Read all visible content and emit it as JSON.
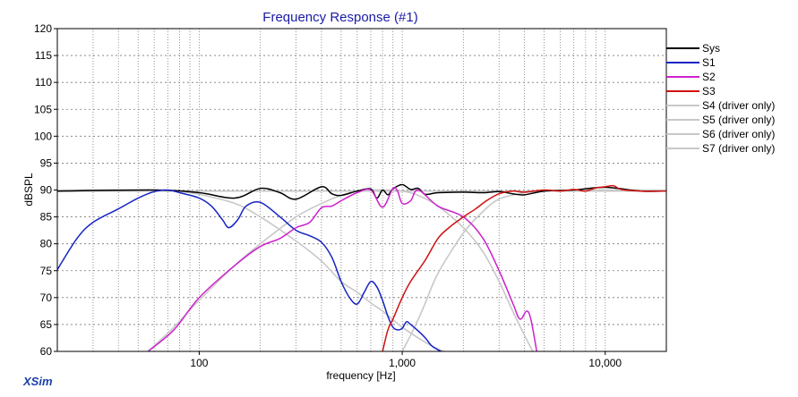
{
  "chart_data": {
    "type": "line",
    "title": "Frequency Response (#1)",
    "xlabel": "frequency [Hz]",
    "ylabel": "dBSPL",
    "x_scale": "log",
    "xlim": [
      20,
      20000
    ],
    "ylim": [
      60,
      120
    ],
    "x_tick_labels": [
      {
        "value": 100,
        "label": "100"
      },
      {
        "value": 1000,
        "label": "1,000"
      },
      {
        "value": 10000,
        "label": "10,000"
      }
    ],
    "y_ticks": [
      60,
      65,
      70,
      75,
      80,
      85,
      90,
      95,
      100,
      105,
      110,
      115,
      120
    ],
    "grid": true,
    "legend_position": "right",
    "brand": "XSim",
    "series": [
      {
        "name": "Sys",
        "color": "#000000",
        "x": [
          20,
          60,
          100,
          150,
          200,
          250,
          300,
          400,
          450,
          500,
          600,
          700,
          750,
          800,
          850,
          900,
          1000,
          1100,
          1200,
          1300,
          1500,
          2000,
          2500,
          3000,
          3500,
          4000,
          5000,
          7000,
          10000,
          15000,
          20000
        ],
        "y": [
          89.8,
          90,
          89.5,
          88.5,
          90.3,
          89.5,
          88.3,
          90.6,
          89.3,
          89.0,
          89.8,
          90.2,
          88.5,
          90.0,
          89.1,
          90.2,
          91.0,
          90.1,
          90.3,
          89.2,
          89.5,
          89.6,
          89.5,
          89.7,
          89.3,
          89.1,
          89.8,
          90.0,
          90.5,
          89.8,
          89.8
        ]
      },
      {
        "name": "S1",
        "color": "#1523c4",
        "x": [
          20,
          25,
          30,
          40,
          50,
          60,
          70,
          80,
          100,
          115,
          130,
          140,
          155,
          170,
          200,
          250,
          300,
          350,
          400,
          450,
          500,
          550,
          600,
          650,
          700,
          750,
          800,
          850,
          900,
          950,
          1000,
          1050,
          1100,
          1200,
          1300,
          1400,
          1550
        ],
        "y": [
          75.2,
          81,
          84,
          86.5,
          88.5,
          89.7,
          90.0,
          89.5,
          88.5,
          87.0,
          84.5,
          83.0,
          84.5,
          87.0,
          87.7,
          85.0,
          82.5,
          81.5,
          80.3,
          77.5,
          73.0,
          70.0,
          68.8,
          71.0,
          73.0,
          72.0,
          69.5,
          66.5,
          64.5,
          64.0,
          64.3,
          65.5,
          65.0,
          63.8,
          62.5,
          61.0,
          60.0
        ]
      },
      {
        "name": "S2",
        "color": "#cc22cc",
        "x": [
          56,
          75,
          100,
          150,
          200,
          250,
          300,
          350,
          400,
          450,
          500,
          600,
          700,
          800,
          900,
          950,
          1000,
          1100,
          1200,
          1500,
          2000,
          2500,
          3000,
          3500,
          3800,
          4100,
          4300,
          4600
        ],
        "y": [
          60.0,
          64.0,
          70.0,
          76.0,
          79.5,
          81.0,
          83.0,
          84.0,
          86.7,
          87.0,
          88.0,
          89.5,
          90.0,
          86.8,
          90.3,
          89.7,
          87.5,
          88.0,
          90.0,
          87.0,
          85.0,
          81.0,
          75.0,
          69.0,
          66.0,
          67.5,
          66.0,
          60.0
        ]
      },
      {
        "name": "S3",
        "color": "#d01010",
        "x": [
          800,
          850,
          900,
          1000,
          1100,
          1300,
          1500,
          1700,
          2000,
          2300,
          2600,
          3000,
          3500,
          4000,
          5000,
          6000,
          7000,
          8000,
          9000,
          10000,
          11000,
          12000,
          15000,
          20000
        ],
        "y": [
          60.0,
          64.0,
          66.0,
          70.0,
          73.0,
          77.0,
          81.0,
          83.0,
          85.0,
          86.5,
          88.0,
          89.3,
          89.8,
          89.6,
          90.0,
          89.8,
          90.1,
          89.8,
          90.4,
          90.6,
          90.8,
          90.1,
          89.8,
          89.8
        ]
      },
      {
        "name": "S4 (driver only)",
        "color": "#c8c8c8",
        "x": [
          20,
          60,
          80,
          100,
          150,
          200,
          300,
          400,
          500,
          600,
          700,
          800,
          1000,
          1200,
          1400,
          1600
        ],
        "y": [
          90.0,
          90.0,
          89.7,
          89.2,
          87.5,
          85.0,
          80.5,
          76.8,
          73.0,
          71.0,
          69.0,
          67.5,
          64.5,
          62.5,
          61.0,
          60.0
        ]
      },
      {
        "name": "S5 (driver only)",
        "color": "#c8c8c8",
        "x": [
          56,
          75,
          100,
          150,
          200,
          300,
          400,
          500,
          600,
          700,
          800,
          1000,
          1200,
          1500,
          2000,
          2500,
          3000,
          3500,
          4000,
          4400
        ],
        "y": [
          60.0,
          64.5,
          69.5,
          76.0,
          80.0,
          85.0,
          87.5,
          89.0,
          89.8,
          90.0,
          90.0,
          89.8,
          89.0,
          87.0,
          83.0,
          78.5,
          73.0,
          67.5,
          63.0,
          60.0
        ]
      },
      {
        "name": "S6 (driver only)",
        "color": "#c8c8c8",
        "x": [
          1000,
          1100,
          1200,
          1300,
          1500,
          2000,
          2500,
          3000,
          4000,
          5000,
          7000,
          10000,
          20000
        ],
        "y": [
          60.0,
          63.0,
          66.0,
          69.0,
          74.5,
          82.0,
          86.0,
          88.3,
          89.5,
          89.8,
          90.0,
          90.0,
          90.0
        ]
      },
      {
        "name": "S7 (driver only)",
        "color": "#c8c8c8",
        "x": [
          20,
          20000
        ],
        "y": [
          89.8,
          89.8
        ]
      }
    ]
  }
}
